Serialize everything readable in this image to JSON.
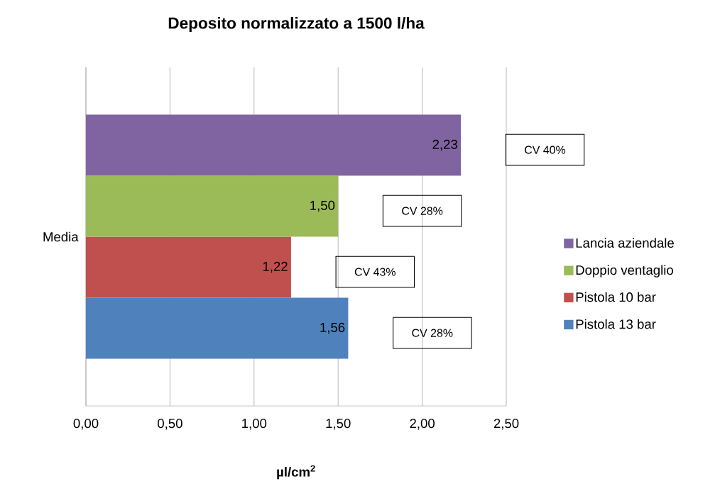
{
  "chart_data": {
    "type": "bar",
    "orientation": "horizontal",
    "title": "Deposito normalizzato  a 1500 l/ha",
    "xlabel": "µl/cm$^{2}$",
    "categories": [
      "Media"
    ],
    "series": [
      {
        "name": "Pistola 13 bar",
        "color": "#4f81bd",
        "values": [
          1.56
        ],
        "value_labels": [
          "1,56"
        ]
      },
      {
        "name": "Pistola 10 bar",
        "color": "#c0504d",
        "values": [
          1.22
        ],
        "value_labels": [
          "1,22"
        ]
      },
      {
        "name": "Doppio ventaglio",
        "color": "#9bbb59",
        "values": [
          1.5
        ],
        "value_labels": [
          "1,50"
        ]
      },
      {
        "name": "Lancia aziendale",
        "color": "#8064a2",
        "values": [
          2.23
        ],
        "value_labels": [
          "2,23"
        ]
      }
    ],
    "annotations": [
      "CV 40%",
      "CV 28%",
      "CV 43%",
      "CV 28%"
    ],
    "xlim": [
      0,
      2.5
    ],
    "xticks": [
      {
        "value": 0,
        "label": "0,00"
      },
      {
        "value": 0.5,
        "label": "0,50"
      },
      {
        "value": 1,
        "label": "1,00"
      },
      {
        "value": 1.5,
        "label": "1,50"
      },
      {
        "value": 2,
        "label": "2,00"
      },
      {
        "value": 2.5,
        "label": "2,50"
      }
    ],
    "grid": "x",
    "legend": "right"
  }
}
